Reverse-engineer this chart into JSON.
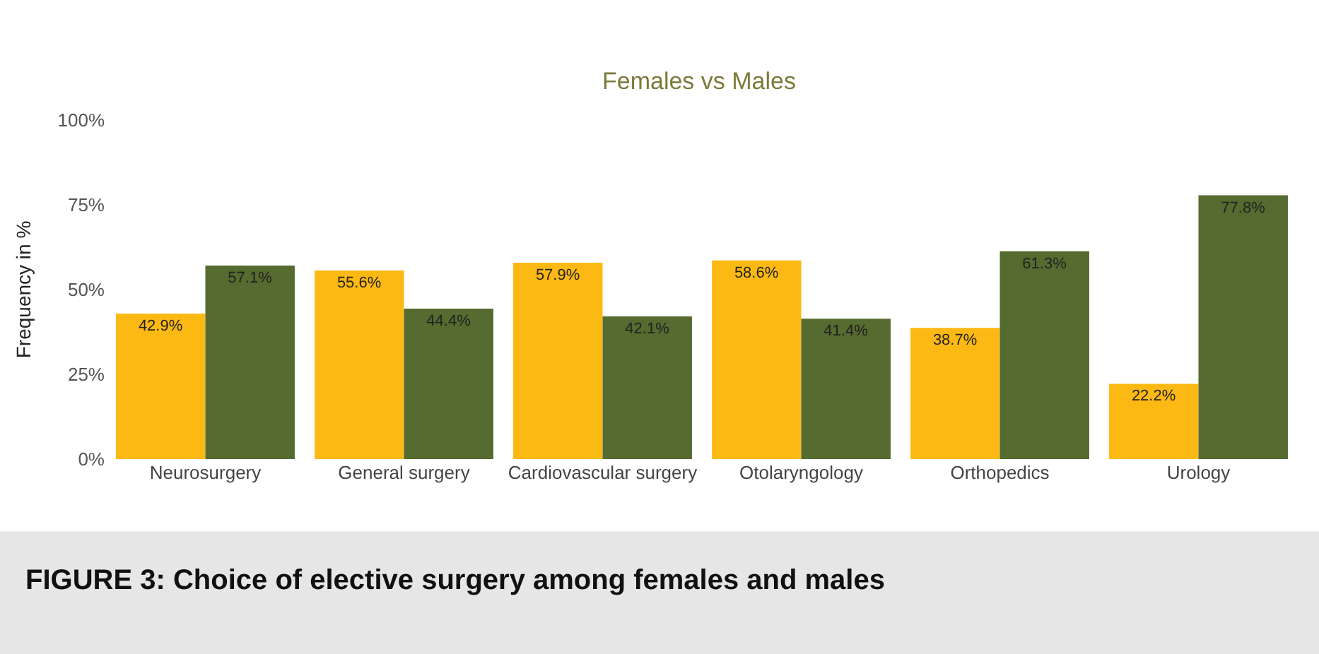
{
  "chart_data": {
    "type": "bar",
    "title": "Females vs Males",
    "ylabel": "Frequency in %",
    "categories": [
      "Neurosurgery",
      "General surgery",
      "Cardiovascular surgery",
      "Otolaryngology",
      "Orthopedics",
      "Urology"
    ],
    "series": [
      {
        "color": "#fdb913",
        "values": [
          42.9,
          55.6,
          57.9,
          58.6,
          38.7,
          22.2
        ],
        "value_labels": [
          "42.9%",
          "55.6%",
          "57.9%",
          "58.6%",
          "38.7%",
          "22.2%"
        ]
      },
      {
        "color": "#556b2f",
        "values": [
          57.1,
          44.4,
          42.1,
          41.4,
          61.3,
          77.8
        ],
        "value_labels": [
          "57.1%",
          "44.4%",
          "42.1%",
          "41.4%",
          "61.3%",
          "77.8%"
        ]
      }
    ],
    "ylim": [
      0,
      100
    ],
    "yticks": [
      {
        "value": 0,
        "label": "0%"
      },
      {
        "value": 25,
        "label": "25%"
      },
      {
        "value": 50,
        "label": "50%"
      },
      {
        "value": 75,
        "label": "75%"
      },
      {
        "value": 100,
        "label": "100%"
      }
    ],
    "legend": false,
    "annotations": [
      "FIGURE 3: Choice of elective surgery among females and males"
    ]
  }
}
